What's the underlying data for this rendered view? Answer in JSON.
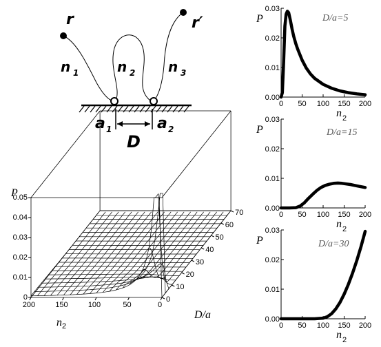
{
  "schematic": {
    "labels": [
      "r",
      "r′",
      "n",
      "1",
      "n",
      "2",
      "n",
      "3",
      "a",
      "1",
      "a",
      "2",
      "D"
    ]
  },
  "chart_data": [
    {
      "type": "line",
      "panel": "right-top",
      "annotation": "D/a=5",
      "ylabel": "P",
      "xlabel": "n",
      "xlabel_sub": "2",
      "xlim": [
        0,
        200
      ],
      "ylim": [
        0,
        0.03
      ],
      "xticks": [
        0,
        50,
        100,
        150,
        200
      ],
      "yticks": [
        "0.00",
        "0.01",
        "0.02",
        "0.03"
      ],
      "x": [
        0,
        3,
        6,
        9,
        12,
        15,
        18,
        22,
        26,
        30,
        35,
        40,
        50,
        60,
        70,
        80,
        100,
        120,
        140,
        160,
        180,
        200
      ],
      "y": [
        0,
        0.0015,
        0.012,
        0.024,
        0.028,
        0.029,
        0.0285,
        0.026,
        0.023,
        0.0205,
        0.018,
        0.016,
        0.0125,
        0.0098,
        0.0078,
        0.0063,
        0.0043,
        0.003,
        0.0021,
        0.0015,
        0.0011,
        0.0008
      ]
    },
    {
      "type": "line",
      "panel": "right-middle",
      "annotation": "D/a=15",
      "ylabel": "P",
      "xlabel": "n",
      "xlabel_sub": "2",
      "xlim": [
        0,
        200
      ],
      "ylim": [
        0,
        0.03
      ],
      "xticks": [
        0,
        50,
        100,
        150,
        200
      ],
      "yticks": [
        "0.00",
        "0.01",
        "0.02",
        "0.03"
      ],
      "x": [
        0,
        20,
        35,
        45,
        55,
        65,
        75,
        85,
        95,
        105,
        115,
        125,
        135,
        145,
        155,
        165,
        175,
        185,
        200
      ],
      "y": [
        0,
        0,
        0.0001,
        0.0006,
        0.0017,
        0.0032,
        0.0046,
        0.0059,
        0.0069,
        0.0076,
        0.008,
        0.0083,
        0.0084,
        0.0083,
        0.0081,
        0.0079,
        0.0076,
        0.0073,
        0.0069
      ]
    },
    {
      "type": "line",
      "panel": "right-bottom",
      "annotation": "D/a=30",
      "ylabel": "P",
      "xlabel": "n",
      "xlabel_sub": "2",
      "xlim": [
        0,
        200
      ],
      "ylim": [
        0,
        0.03
      ],
      "xticks": [
        0,
        50,
        100,
        150,
        200
      ],
      "yticks": [
        "0.00",
        "0.01",
        "0.02",
        "0.03"
      ],
      "x": [
        0,
        80,
        100,
        110,
        120,
        130,
        140,
        150,
        160,
        170,
        180,
        190,
        200
      ],
      "y": [
        0,
        0,
        0.0002,
        0.0007,
        0.0017,
        0.0033,
        0.0055,
        0.0083,
        0.0116,
        0.0154,
        0.0196,
        0.0243,
        0.0295
      ]
    },
    {
      "type": "surface",
      "panel": "left-bottom",
      "zlabel": "P",
      "xlabel": "n",
      "xlabel_sub": "2",
      "ylabel": "D/a",
      "xlim": [
        200,
        0
      ],
      "ylim": [
        0,
        70
      ],
      "zlim": [
        0,
        0.05
      ],
      "xticks": [
        200,
        150,
        100,
        50,
        0
      ],
      "yticks": [
        0,
        10,
        20,
        30,
        40,
        50,
        60,
        70
      ],
      "zticks": [
        "0",
        "0.01",
        "0.02",
        "0.03",
        "0.04",
        "0.05"
      ]
    }
  ]
}
